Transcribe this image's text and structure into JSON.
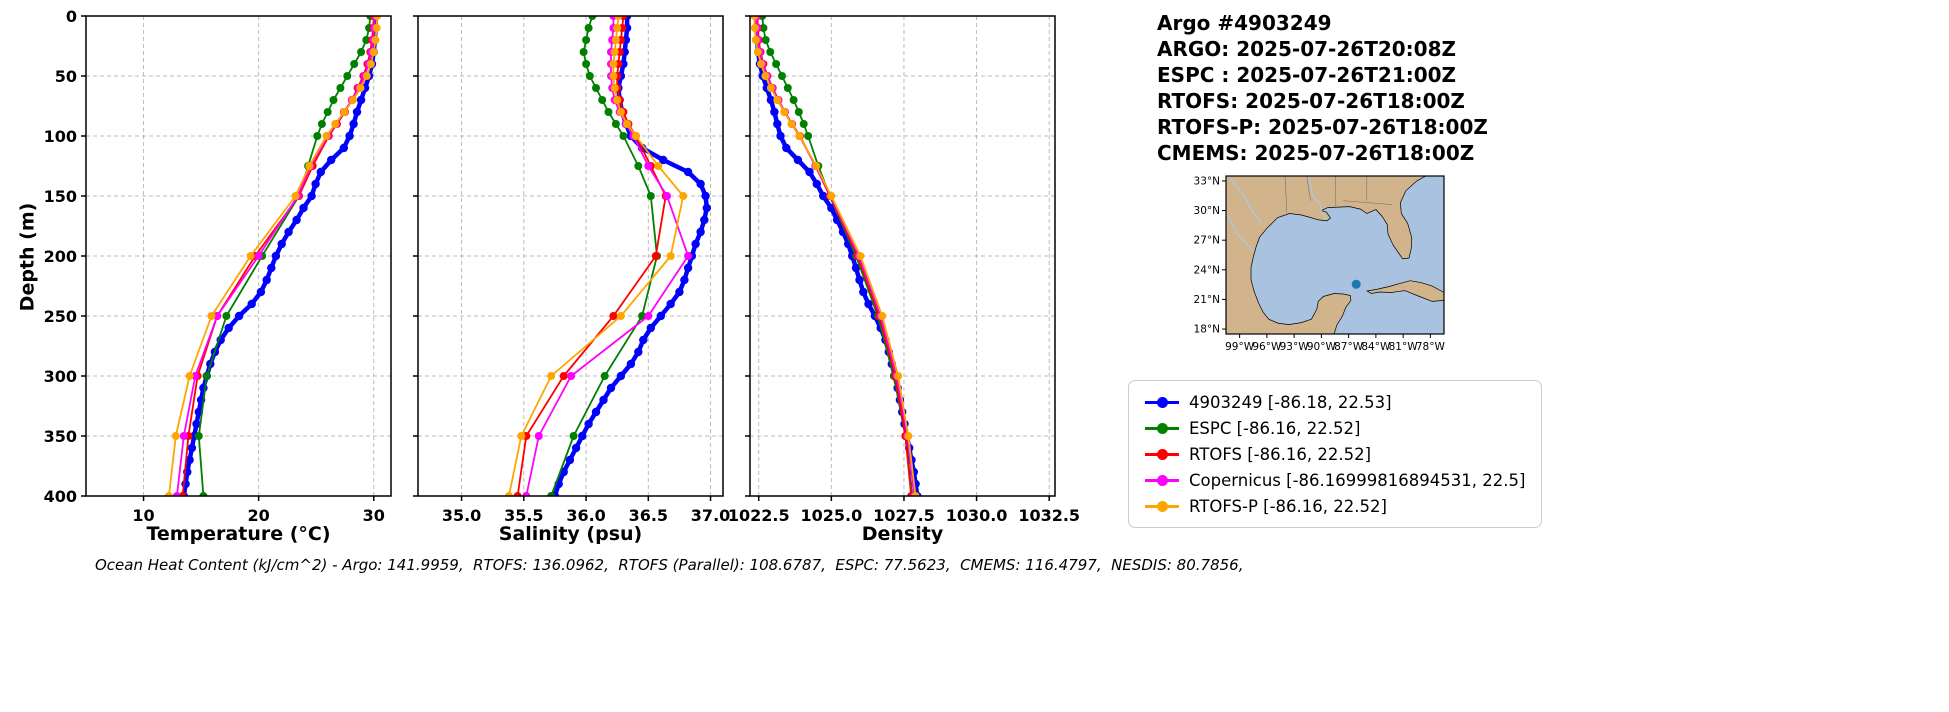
{
  "header": {
    "title": "Argo #4903249",
    "lines": [
      "ARGO: 2025-07-26T20:08Z",
      "ESPC : 2025-07-26T21:00Z",
      "RTOFS: 2025-07-26T18:00Z",
      "RTOFS-P: 2025-07-26T18:00Z",
      "CMEMS: 2025-07-26T18:00Z"
    ]
  },
  "footer": {
    "text": "Ocean Heat Content (kJ/cm^2) - Argo: 141.9959,  RTOFS: 136.0962,  RTOFS (Parallel): 108.6787,  ESPC: 77.5623,  CMEMS: 116.4797,  NESDIS: 80.7856,"
  },
  "legend": {
    "items": [
      {
        "label": "4903249 [-86.18, 22.53]",
        "color": "#0000ff"
      },
      {
        "label": "ESPC [-86.16, 22.52]",
        "color": "#008000"
      },
      {
        "label": "RTOFS [-86.16, 22.52]",
        "color": "#ff0000"
      },
      {
        "label": "Copernicus [-86.16999816894531, 22.5]",
        "color": "#ff00ff"
      },
      {
        "label": "RTOFS-P [-86.16, 22.52]",
        "color": "#ffa500"
      }
    ]
  },
  "map": {
    "extent": {
      "lon": [
        -100.5,
        -76.5
      ],
      "lat": [
        17.5,
        33.5
      ]
    },
    "water_color": "#a8c2e0",
    "land_color": "#d2b48c",
    "marker": {
      "lon": -86.17,
      "lat": 22.53,
      "color": "#1f77b4"
    },
    "lat_ticks": [
      {
        "v": 33,
        "label": "33°N"
      },
      {
        "v": 30,
        "label": "30°N"
      },
      {
        "v": 27,
        "label": "27°N"
      },
      {
        "v": 24,
        "label": "24°N"
      },
      {
        "v": 21,
        "label": "21°N"
      },
      {
        "v": 18,
        "label": "18°N"
      }
    ],
    "lon_ticks": [
      {
        "v": -99,
        "label": "99°W"
      },
      {
        "v": -96,
        "label": "96°W"
      },
      {
        "v": -93,
        "label": "93°W"
      },
      {
        "v": -90,
        "label": "90°W"
      },
      {
        "v": -87,
        "label": "87°W"
      },
      {
        "v": -84,
        "label": "84°W"
      },
      {
        "v": -81,
        "label": "81°W"
      },
      {
        "v": -78,
        "label": "78°W"
      }
    ]
  },
  "depth_profiles": {
    "argo": [
      0,
      10,
      20,
      30,
      40,
      50,
      60,
      70,
      80,
      90,
      100,
      110,
      120,
      130,
      140,
      150,
      160,
      170,
      180,
      190,
      200,
      210,
      220,
      230,
      240,
      250,
      260,
      270,
      280,
      290,
      300,
      310,
      320,
      330,
      340,
      350,
      360,
      370,
      380,
      390,
      400
    ],
    "model": [
      0,
      10,
      20,
      30,
      40,
      50,
      60,
      70,
      80,
      90,
      100,
      125,
      150,
      200,
      250,
      300,
      350,
      400
    ]
  },
  "chart_data": [
    {
      "type": "line",
      "xlabel": "Temperature (°C)",
      "ylabel": "Depth (m)",
      "xlim": [
        5,
        31.5
      ],
      "xticks": [
        10,
        20,
        30
      ],
      "xtick_labels": [
        "10",
        "20",
        "30"
      ],
      "ylim": [
        0,
        400
      ],
      "yticks": [
        0,
        50,
        100,
        150,
        200,
        250,
        300,
        350,
        400
      ],
      "ytick_labels": [
        "0",
        "50",
        "100",
        "150",
        "200",
        "250",
        "300",
        "350",
        "400"
      ],
      "grid": true,
      "series": [
        {
          "name": "4903249",
          "color": "#0000ff",
          "lw": 4.5,
          "ms": 4.2,
          "depths": "argo",
          "values": [
            30.2,
            30.15,
            30.1,
            30.0,
            29.85,
            29.6,
            29.25,
            28.9,
            28.55,
            28.25,
            27.9,
            27.4,
            26.3,
            25.4,
            24.95,
            24.6,
            23.9,
            23.3,
            22.6,
            22.0,
            21.5,
            21.1,
            20.7,
            20.2,
            19.4,
            18.3,
            17.4,
            16.7,
            16.2,
            15.8,
            15.5,
            15.2,
            15.0,
            14.8,
            14.6,
            14.4,
            14.2,
            14.0,
            13.8,
            13.65,
            13.5
          ]
        },
        {
          "name": "ESPC",
          "color": "#008000",
          "lw": 1.8,
          "ms": 4,
          "depths": "model",
          "values": [
            29.7,
            29.6,
            29.35,
            28.9,
            28.3,
            27.7,
            27.1,
            26.5,
            26.0,
            25.5,
            25.1,
            24.3,
            23.5,
            20.3,
            17.2,
            15.5,
            14.8,
            15.2
          ]
        },
        {
          "name": "RTOFS",
          "color": "#ff0000",
          "lw": 1.8,
          "ms": 4,
          "depths": "model",
          "values": [
            30.0,
            29.95,
            29.85,
            29.7,
            29.45,
            29.1,
            28.6,
            28.1,
            27.5,
            26.8,
            26.1,
            24.7,
            23.5,
            19.7,
            16.4,
            14.7,
            13.9,
            13.4
          ]
        },
        {
          "name": "Copernicus",
          "color": "#ff00ff",
          "lw": 1.8,
          "ms": 4,
          "depths": "model",
          "values": [
            30.1,
            30.05,
            29.95,
            29.8,
            29.55,
            29.2,
            28.7,
            28.1,
            27.4,
            26.7,
            26.0,
            24.5,
            23.4,
            20.0,
            16.4,
            14.5,
            13.5,
            12.9
          ]
        },
        {
          "name": "RTOFS-P",
          "color": "#ffa500",
          "lw": 1.8,
          "ms": 4,
          "depths": "model",
          "values": [
            30.3,
            30.25,
            30.15,
            30.0,
            29.75,
            29.4,
            28.85,
            28.2,
            27.45,
            26.65,
            25.9,
            24.4,
            23.2,
            19.3,
            15.9,
            14.0,
            12.8,
            12.2
          ]
        }
      ]
    },
    {
      "type": "line",
      "xlabel": "Salinity (psu)",
      "ylabel": "Depth (m)",
      "xlim": [
        34.65,
        37.1
      ],
      "xticks": [
        35.0,
        35.5,
        36.0,
        36.5,
        37.0
      ],
      "xtick_labels": [
        "35.0",
        "35.5",
        "36.0",
        "36.5",
        "37.0"
      ],
      "ylim": [
        0,
        400
      ],
      "yticks": [
        0,
        50,
        100,
        150,
        200,
        250,
        300,
        350,
        400
      ],
      "ytick_labels": [
        "0",
        "50",
        "100",
        "150",
        "200",
        "250",
        "300",
        "350",
        "400"
      ],
      "grid": true,
      "series": [
        {
          "name": "4903249",
          "color": "#0000ff",
          "lw": 4.5,
          "ms": 4.2,
          "depths": "argo",
          "values": [
            36.33,
            36.33,
            36.32,
            36.31,
            36.3,
            36.28,
            36.26,
            36.27,
            36.29,
            36.32,
            36.36,
            36.45,
            36.62,
            36.82,
            36.92,
            36.96,
            36.97,
            36.95,
            36.92,
            36.88,
            36.85,
            36.82,
            36.79,
            36.75,
            36.68,
            36.6,
            36.52,
            36.46,
            36.42,
            36.36,
            36.28,
            36.2,
            36.14,
            36.08,
            36.02,
            35.97,
            35.92,
            35.87,
            35.82,
            35.78,
            35.75
          ]
        },
        {
          "name": "ESPC",
          "color": "#008000",
          "lw": 1.8,
          "ms": 4,
          "depths": "model",
          "values": [
            36.05,
            36.02,
            36.0,
            35.98,
            36.0,
            36.03,
            36.08,
            36.13,
            36.18,
            36.24,
            36.3,
            36.42,
            36.52,
            36.57,
            36.45,
            36.15,
            35.9,
            35.72
          ]
        },
        {
          "name": "RTOFS",
          "color": "#ff0000",
          "lw": 1.8,
          "ms": 4,
          "depths": "model",
          "values": [
            36.3,
            36.29,
            36.28,
            36.27,
            36.26,
            36.25,
            36.25,
            36.27,
            36.3,
            36.34,
            36.4,
            36.52,
            36.64,
            36.56,
            36.22,
            35.82,
            35.52,
            35.45
          ]
        },
        {
          "name": "Copernicus",
          "color": "#ff00ff",
          "lw": 1.8,
          "ms": 4,
          "depths": "model",
          "values": [
            36.22,
            36.22,
            36.21,
            36.2,
            36.2,
            36.2,
            36.21,
            36.23,
            36.27,
            36.32,
            36.38,
            36.5,
            36.65,
            36.82,
            36.5,
            35.88,
            35.62,
            35.52
          ]
        },
        {
          "name": "RTOFS-P",
          "color": "#ffa500",
          "lw": 1.8,
          "ms": 4,
          "depths": "model",
          "values": [
            36.26,
            36.25,
            36.24,
            36.23,
            36.22,
            36.22,
            36.23,
            36.25,
            36.28,
            36.33,
            36.4,
            36.58,
            36.78,
            36.68,
            36.28,
            35.72,
            35.48,
            35.38
          ]
        }
      ]
    },
    {
      "type": "line",
      "xlabel": "Density",
      "ylabel": "Depth (m)",
      "xlim": [
        1022.2,
        1032.7
      ],
      "xticks": [
        1022.5,
        1025.0,
        1027.5,
        1030.0,
        1032.5
      ],
      "xtick_labels": [
        "1022.5",
        "1025.0",
        "1027.5",
        "1030.0",
        "1032.5"
      ],
      "ylim": [
        0,
        400
      ],
      "yticks": [
        0,
        50,
        100,
        150,
        200,
        250,
        300,
        350,
        400
      ],
      "ytick_labels": [
        "0",
        "50",
        "100",
        "150",
        "200",
        "250",
        "300",
        "350",
        "400"
      ],
      "grid": true,
      "series": [
        {
          "name": "4903249",
          "color": "#0000ff",
          "lw": 4.5,
          "ms": 4.2,
          "depths": "argo",
          "values": [
            1022.4,
            1022.42,
            1022.44,
            1022.48,
            1022.54,
            1022.64,
            1022.78,
            1022.92,
            1023.04,
            1023.14,
            1023.25,
            1023.45,
            1023.85,
            1024.25,
            1024.5,
            1024.72,
            1025.0,
            1025.2,
            1025.4,
            1025.58,
            1025.72,
            1025.85,
            1025.97,
            1026.1,
            1026.28,
            1026.5,
            1026.7,
            1026.86,
            1026.98,
            1027.08,
            1027.18,
            1027.28,
            1027.36,
            1027.44,
            1027.52,
            1027.6,
            1027.68,
            1027.76,
            1027.84,
            1027.9,
            1027.96
          ]
        },
        {
          "name": "ESPC",
          "color": "#008000",
          "lw": 1.8,
          "ms": 4,
          "depths": "model",
          "values": [
            1022.62,
            1022.66,
            1022.74,
            1022.9,
            1023.1,
            1023.3,
            1023.5,
            1023.7,
            1023.88,
            1024.05,
            1024.2,
            1024.55,
            1024.95,
            1025.85,
            1026.6,
            1027.15,
            1027.55,
            1027.78
          ]
        },
        {
          "name": "RTOFS",
          "color": "#ff0000",
          "lw": 1.8,
          "ms": 4,
          "depths": "model",
          "values": [
            1022.45,
            1022.47,
            1022.5,
            1022.56,
            1022.66,
            1022.8,
            1022.98,
            1023.18,
            1023.4,
            1023.65,
            1023.92,
            1024.45,
            1024.95,
            1025.9,
            1026.65,
            1027.2,
            1027.55,
            1027.75
          ]
        },
        {
          "name": "Copernicus",
          "color": "#ff00ff",
          "lw": 1.8,
          "ms": 4,
          "depths": "model",
          "values": [
            1022.42,
            1022.44,
            1022.47,
            1022.53,
            1022.63,
            1022.78,
            1022.96,
            1023.17,
            1023.4,
            1023.64,
            1023.9,
            1024.45,
            1024.98,
            1025.95,
            1026.7,
            1027.25,
            1027.62,
            1027.85
          ]
        },
        {
          "name": "RTOFS-P",
          "color": "#ffa500",
          "lw": 1.8,
          "ms": 4,
          "depths": "model",
          "values": [
            1022.35,
            1022.37,
            1022.4,
            1022.47,
            1022.58,
            1022.73,
            1022.92,
            1023.14,
            1023.38,
            1023.63,
            1023.9,
            1024.48,
            1025.0,
            1026.0,
            1026.75,
            1027.3,
            1027.65,
            1027.9
          ]
        }
      ]
    }
  ]
}
